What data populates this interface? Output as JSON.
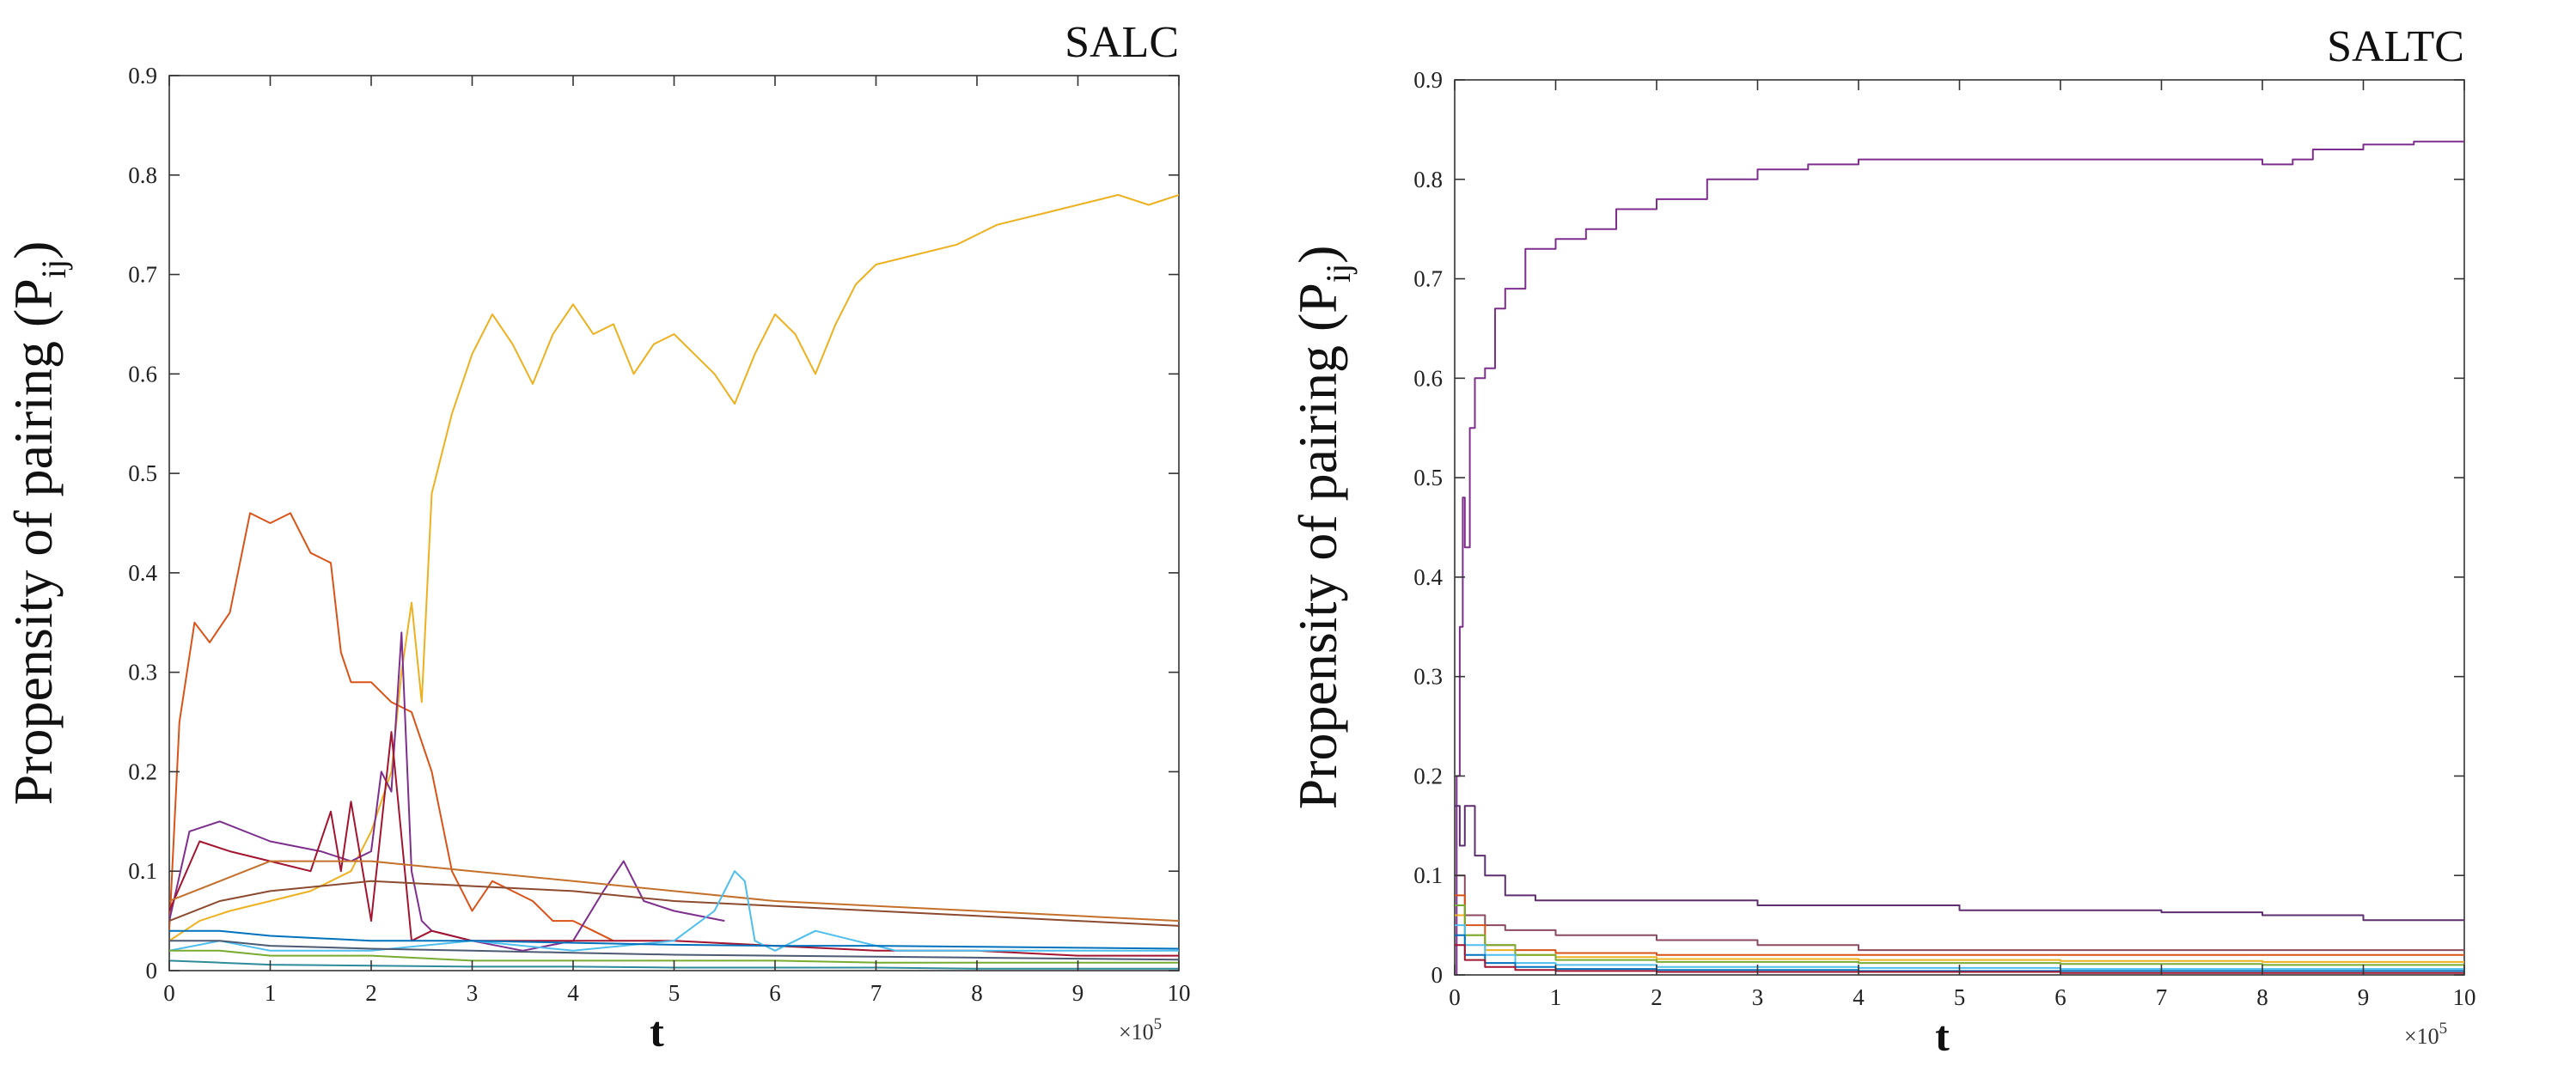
{
  "chart_data": [
    {
      "type": "line",
      "title": "SALC",
      "xlabel": "t",
      "ylabel_main": "Propensity of pairing (P",
      "ylabel_sub": "ij",
      "ylabel_close": ")",
      "x_multiplier": "×10",
      "x_multiplier_exp": "5",
      "xlim": [
        0,
        10
      ],
      "ylim": [
        0,
        0.9
      ],
      "x_ticks": [
        "0",
        "1",
        "2",
        "3",
        "4",
        "5",
        "6",
        "7",
        "8",
        "9",
        "10"
      ],
      "y_ticks": [
        "0",
        "0.1",
        "0.2",
        "0.3",
        "0.4",
        "0.5",
        "0.6",
        "0.7",
        "0.8",
        "0.9"
      ],
      "grid": false,
      "series": [
        {
          "color": "#EDB120",
          "x": [
            0,
            0.3,
            0.6,
            1.0,
            1.4,
            1.8,
            2.0,
            2.2,
            2.3,
            2.4,
            2.5,
            2.6,
            2.8,
            3.0,
            3.2,
            3.4,
            3.6,
            3.8,
            4.0,
            4.2,
            4.4,
            4.6,
            4.8,
            5.0,
            5.2,
            5.4,
            5.6,
            5.8,
            6.0,
            6.2,
            6.4,
            6.6,
            6.8,
            7.0,
            7.4,
            7.8,
            8.2,
            8.6,
            9.0,
            9.4,
            9.7,
            10
          ],
          "y": [
            0.03,
            0.05,
            0.06,
            0.07,
            0.08,
            0.1,
            0.14,
            0.2,
            0.3,
            0.37,
            0.27,
            0.48,
            0.56,
            0.62,
            0.66,
            0.63,
            0.59,
            0.64,
            0.67,
            0.64,
            0.65,
            0.6,
            0.63,
            0.64,
            0.62,
            0.6,
            0.57,
            0.62,
            0.66,
            0.64,
            0.6,
            0.65,
            0.69,
            0.71,
            0.72,
            0.73,
            0.75,
            0.76,
            0.77,
            0.78,
            0.77,
            0.78
          ]
        },
        {
          "color": "#D95319",
          "x": [
            0,
            0.1,
            0.25,
            0.4,
            0.6,
            0.8,
            1.0,
            1.2,
            1.4,
            1.6,
            1.7,
            1.8,
            2.0,
            2.2,
            2.4,
            2.6,
            2.8,
            3.0,
            3.2,
            3.4,
            3.6,
            3.8,
            4.0,
            4.2,
            4.4
          ],
          "y": [
            0.04,
            0.25,
            0.35,
            0.33,
            0.36,
            0.46,
            0.45,
            0.46,
            0.42,
            0.41,
            0.32,
            0.29,
            0.29,
            0.27,
            0.26,
            0.2,
            0.1,
            0.06,
            0.09,
            0.08,
            0.07,
            0.05,
            0.05,
            0.04,
            0.03
          ]
        },
        {
          "color": "#7E2F8E",
          "x": [
            0,
            0.2,
            0.5,
            1.0,
            1.5,
            1.8,
            2.0,
            2.1,
            2.2,
            2.3,
            2.4,
            2.5,
            2.6,
            3.0,
            3.5,
            4.0,
            4.3,
            4.5,
            4.7,
            5.0,
            5.5
          ],
          "y": [
            0.05,
            0.14,
            0.15,
            0.13,
            0.12,
            0.11,
            0.12,
            0.2,
            0.18,
            0.34,
            0.1,
            0.05,
            0.04,
            0.03,
            0.02,
            0.03,
            0.08,
            0.11,
            0.07,
            0.06,
            0.05
          ]
        },
        {
          "color": "#A2142F",
          "x": [
            0,
            0.3,
            0.6,
            1.0,
            1.4,
            1.6,
            1.7,
            1.8,
            2.0,
            2.2,
            2.4,
            2.6,
            3.0,
            4.0,
            5.0,
            6.0,
            7.0,
            8.0,
            9.0,
            10
          ],
          "y": [
            0.06,
            0.13,
            0.12,
            0.11,
            0.1,
            0.16,
            0.1,
            0.17,
            0.05,
            0.24,
            0.03,
            0.04,
            0.03,
            0.03,
            0.03,
            0.025,
            0.02,
            0.02,
            0.015,
            0.015
          ]
        },
        {
          "color": "#C4702A",
          "x": [
            0,
            0.5,
            1.0,
            2.0,
            3.0,
            4.0,
            5.0,
            6.0,
            7.0,
            8.0,
            9.0,
            10
          ],
          "y": [
            0.07,
            0.09,
            0.11,
            0.11,
            0.1,
            0.09,
            0.08,
            0.07,
            0.065,
            0.06,
            0.055,
            0.05
          ]
        },
        {
          "color": "#8C4A2F",
          "x": [
            0,
            0.5,
            1.0,
            2.0,
            3.0,
            4.0,
            5.0,
            6.0,
            7.0,
            8.0,
            9.0,
            10
          ],
          "y": [
            0.05,
            0.07,
            0.08,
            0.09,
            0.085,
            0.08,
            0.07,
            0.065,
            0.06,
            0.055,
            0.05,
            0.045
          ]
        },
        {
          "color": "#4DBEEE",
          "x": [
            0,
            0.5,
            1.0,
            2.0,
            3.0,
            4.0,
            5.0,
            5.4,
            5.6,
            5.7,
            5.8,
            6.0,
            6.4,
            6.8,
            7.2,
            8.0,
            9.0,
            10
          ],
          "y": [
            0.02,
            0.03,
            0.02,
            0.02,
            0.03,
            0.02,
            0.03,
            0.06,
            0.1,
            0.09,
            0.03,
            0.02,
            0.04,
            0.03,
            0.02,
            0.02,
            0.02,
            0.02
          ]
        },
        {
          "color": "#0072BD",
          "x": [
            0,
            0.5,
            1.0,
            2.0,
            3.0,
            4.0,
            5.0,
            6.0,
            7.0,
            8.0,
            9.0,
            10
          ],
          "y": [
            0.04,
            0.04,
            0.035,
            0.03,
            0.03,
            0.028,
            0.026,
            0.025,
            0.025,
            0.024,
            0.023,
            0.022
          ]
        },
        {
          "color": "#77AC30",
          "x": [
            0,
            0.5,
            1.0,
            2.0,
            3.0,
            4.0,
            5.0,
            6.0,
            7.0,
            8.0,
            9.0,
            10
          ],
          "y": [
            0.02,
            0.02,
            0.015,
            0.015,
            0.01,
            0.01,
            0.01,
            0.01,
            0.008,
            0.008,
            0.008,
            0.008
          ]
        },
        {
          "color": "#4C5A73",
          "x": [
            0,
            0.5,
            1.0,
            2.0,
            3.0,
            4.0,
            5.0,
            6.0,
            7.0,
            8.0,
            9.0,
            10
          ],
          "y": [
            0.03,
            0.03,
            0.025,
            0.022,
            0.02,
            0.018,
            0.016,
            0.015,
            0.014,
            0.013,
            0.012,
            0.011
          ]
        },
        {
          "color": "#2E8B9A",
          "x": [
            0,
            0.5,
            1.0,
            2.0,
            3.0,
            4.0,
            5.0,
            6.0,
            7.0,
            8.0,
            9.0,
            10
          ],
          "y": [
            0.01,
            0.008,
            0.006,
            0.005,
            0.004,
            0.004,
            0.003,
            0.003,
            0.003,
            0.002,
            0.002,
            0.002
          ]
        }
      ]
    },
    {
      "type": "line",
      "title": "SALTC",
      "xlabel": "t",
      "ylabel_main": "Propensity of pairing (P",
      "ylabel_sub": "ij",
      "ylabel_close": ")",
      "x_multiplier": "×10",
      "x_multiplier_exp": "5",
      "xlim": [
        0,
        10
      ],
      "ylim": [
        0,
        0.9
      ],
      "x_ticks": [
        "0",
        "1",
        "2",
        "3",
        "4",
        "5",
        "6",
        "7",
        "8",
        "9",
        "10"
      ],
      "y_ticks": [
        "0",
        "0.1",
        "0.2",
        "0.3",
        "0.4",
        "0.5",
        "0.6",
        "0.7",
        "0.8",
        "0.9"
      ],
      "grid": false,
      "series": [
        {
          "color": "#7E2F8E",
          "x": [
            0,
            0.02,
            0.05,
            0.08,
            0.1,
            0.15,
            0.2,
            0.3,
            0.4,
            0.5,
            0.7,
            1.0,
            1.3,
            1.6,
            2.0,
            2.5,
            3.0,
            3.5,
            4.0,
            5.0,
            6.0,
            7.0,
            7.5,
            8.0,
            8.3,
            8.5,
            9.0,
            9.5,
            10
          ],
          "y": [
            0.0,
            0.2,
            0.35,
            0.48,
            0.43,
            0.55,
            0.6,
            0.61,
            0.67,
            0.69,
            0.73,
            0.74,
            0.75,
            0.77,
            0.78,
            0.8,
            0.81,
            0.815,
            0.82,
            0.82,
            0.82,
            0.82,
            0.82,
            0.815,
            0.82,
            0.83,
            0.835,
            0.838,
            0.838
          ]
        },
        {
          "color": "#5E2F6E",
          "x": [
            0,
            0.05,
            0.1,
            0.2,
            0.3,
            0.5,
            0.8,
            1.5,
            3.0,
            5.0,
            7.0,
            8.0,
            9.0,
            10
          ],
          "y": [
            0.17,
            0.13,
            0.17,
            0.12,
            0.1,
            0.08,
            0.075,
            0.075,
            0.07,
            0.065,
            0.063,
            0.06,
            0.055,
            0.055
          ]
        },
        {
          "color": "#8C4A5F",
          "x": [
            0,
            0.1,
            0.3,
            0.5,
            1.0,
            2.0,
            3.0,
            4.0,
            5.0,
            7.0,
            10
          ],
          "y": [
            0.1,
            0.06,
            0.05,
            0.045,
            0.04,
            0.035,
            0.03,
            0.025,
            0.025,
            0.025,
            0.025
          ]
        },
        {
          "color": "#D95319",
          "x": [
            0,
            0.1,
            0.3,
            0.6,
            1.0,
            2.0,
            3.0,
            4.0,
            5.0,
            7.0,
            10
          ],
          "y": [
            0.08,
            0.05,
            0.03,
            0.025,
            0.022,
            0.02,
            0.02,
            0.02,
            0.02,
            0.02,
            0.02
          ]
        },
        {
          "color": "#EDB120",
          "x": [
            0,
            0.1,
            0.3,
            0.6,
            1.0,
            2.0,
            4.0,
            6.0,
            8.0,
            10
          ],
          "y": [
            0.06,
            0.04,
            0.025,
            0.02,
            0.018,
            0.016,
            0.015,
            0.014,
            0.013,
            0.012
          ]
        },
        {
          "color": "#77AC30",
          "x": [
            0,
            0.1,
            0.3,
            0.6,
            1.0,
            2.0,
            4.0,
            6.0,
            8.0,
            10
          ],
          "y": [
            0.07,
            0.04,
            0.03,
            0.02,
            0.015,
            0.013,
            0.012,
            0.011,
            0.01,
            0.01
          ]
        },
        {
          "color": "#4DBEEE",
          "x": [
            0,
            0.1,
            0.3,
            0.6,
            1.0,
            2.0,
            4.0,
            6.0,
            8.0,
            10
          ],
          "y": [
            0.05,
            0.03,
            0.02,
            0.012,
            0.01,
            0.008,
            0.007,
            0.006,
            0.006,
            0.006
          ]
        },
        {
          "color": "#0072BD",
          "x": [
            0,
            0.1,
            0.3,
            0.6,
            1.0,
            2.0,
            4.0,
            6.0,
            8.0,
            10
          ],
          "y": [
            0.04,
            0.02,
            0.012,
            0.008,
            0.006,
            0.005,
            0.004,
            0.004,
            0.004,
            0.004
          ]
        },
        {
          "color": "#A2142F",
          "x": [
            0,
            0.1,
            0.3,
            0.6,
            1.0,
            2.0,
            4.0,
            6.0,
            8.0,
            10
          ],
          "y": [
            0.03,
            0.015,
            0.008,
            0.005,
            0.004,
            0.003,
            0.003,
            0.002,
            0.002,
            0.002
          ]
        }
      ]
    }
  ]
}
